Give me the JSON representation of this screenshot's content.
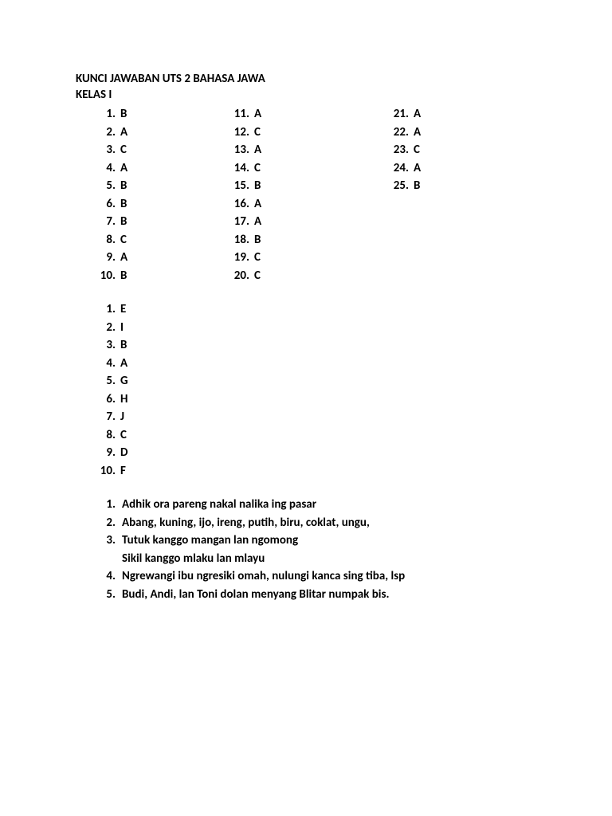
{
  "title": "KUNCI JAWABAN UTS 2 BAHASA JAWA",
  "subtitle": "KELAS I",
  "section1": {
    "col1": [
      {
        "num": "1",
        "val": "B"
      },
      {
        "num": "2",
        "val": "A"
      },
      {
        "num": "3",
        "val": "C"
      },
      {
        "num": "4",
        "val": "A"
      },
      {
        "num": "5",
        "val": "B"
      },
      {
        "num": "6",
        "val": "B"
      },
      {
        "num": "7",
        "val": "B"
      },
      {
        "num": "8",
        "val": "C"
      },
      {
        "num": "9",
        "val": "A"
      },
      {
        "num": "10",
        "val": "B"
      }
    ],
    "col2": [
      {
        "num": "11",
        "val": "A"
      },
      {
        "num": "12",
        "val": "C"
      },
      {
        "num": "13",
        "val": "A"
      },
      {
        "num": "14",
        "val": "C"
      },
      {
        "num": "15",
        "val": "B"
      },
      {
        "num": "16",
        "val": "A"
      },
      {
        "num": "17",
        "val": "A"
      },
      {
        "num": "18",
        "val": "B"
      },
      {
        "num": "19",
        "val": "C"
      },
      {
        "num": "20",
        "val": "C"
      }
    ],
    "col3": [
      {
        "num": "21",
        "val": "A"
      },
      {
        "num": "22",
        "val": "A"
      },
      {
        "num": "23",
        "val": "C"
      },
      {
        "num": "24",
        "val": "A"
      },
      {
        "num": "25",
        "val": "B"
      }
    ]
  },
  "section2": [
    {
      "num": "1",
      "val": "E"
    },
    {
      "num": "2",
      "val": "I"
    },
    {
      "num": "3",
      "val": "B"
    },
    {
      "num": "4",
      "val": "A"
    },
    {
      "num": "5",
      "val": "G"
    },
    {
      "num": "6",
      "val": "H"
    },
    {
      "num": "7",
      "val": "J"
    },
    {
      "num": "8",
      "val": "C"
    },
    {
      "num": "9",
      "val": "D"
    },
    {
      "num": "10",
      "val": "F"
    }
  ],
  "section3": [
    {
      "num": "1",
      "val": "Adhik ora pareng nakal nalika ing pasar"
    },
    {
      "num": "2",
      "val": "Abang, kuning, ijo, ireng, putih, biru, coklat, ungu,"
    },
    {
      "num": "3",
      "val": "Tutuk kanggo mangan lan ngomong",
      "cont": "Sikil kanggo mlaku lan mlayu"
    },
    {
      "num": "4",
      "val": "Ngrewangi ibu ngresiki omah, nulungi kanca sing tiba, lsp"
    },
    {
      "num": "5",
      "val": "Budi, Andi, lan Toni dolan menyang Blitar numpak bis."
    }
  ]
}
